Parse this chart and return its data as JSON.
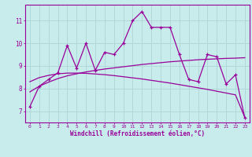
{
  "xlabel": "Windchill (Refroidissement éolien,°C)",
  "bg_color": "#c8ecec",
  "line_color": "#990099",
  "grid_color": "#b0d8d8",
  "xlim": [
    -0.5,
    23.5
  ],
  "ylim": [
    6.5,
    11.7
  ],
  "yticks": [
    7,
    8,
    9,
    10,
    11
  ],
  "xticks": [
    0,
    1,
    2,
    3,
    4,
    5,
    6,
    7,
    8,
    9,
    10,
    11,
    12,
    13,
    14,
    15,
    16,
    17,
    18,
    19,
    20,
    21,
    22,
    23
  ],
  "jagged_y": [
    7.2,
    8.1,
    8.4,
    8.7,
    9.9,
    8.9,
    10.0,
    8.8,
    9.6,
    9.5,
    10.0,
    11.0,
    11.4,
    10.7,
    10.7,
    10.7,
    9.5,
    8.4,
    8.3,
    9.5,
    9.4,
    8.2,
    8.6,
    6.7
  ],
  "trend1_y": [
    7.85,
    8.1,
    8.28,
    8.44,
    8.56,
    8.65,
    8.73,
    8.8,
    8.86,
    8.91,
    8.96,
    9.01,
    9.06,
    9.1,
    9.14,
    9.18,
    9.21,
    9.24,
    9.27,
    9.29,
    9.31,
    9.33,
    9.34,
    9.36
  ],
  "trend2_y": [
    8.3,
    8.48,
    8.58,
    8.65,
    8.68,
    8.68,
    8.67,
    8.64,
    8.61,
    8.57,
    8.52,
    8.47,
    8.42,
    8.36,
    8.3,
    8.24,
    8.17,
    8.1,
    8.03,
    7.96,
    7.88,
    7.8,
    7.72,
    6.72
  ]
}
